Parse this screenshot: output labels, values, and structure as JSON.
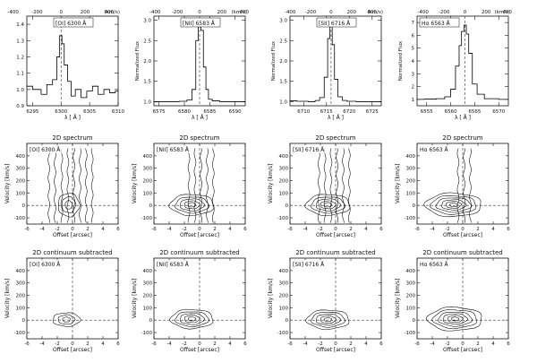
{
  "figure": {
    "row_titles": {
      "row2": "2D spectrum",
      "row3": "2D continuum subtracted"
    }
  },
  "chart_data": [
    {
      "type": "line",
      "panel": "1D [OI] 6300",
      "label": "[OI] 6300 Å",
      "xlabel": "λ [ Å ]",
      "ylabel": "",
      "top_label": "(km/s)",
      "x": [
        6294,
        6296,
        6297,
        6298,
        6299,
        6299.5,
        6300,
        6300.3,
        6300.8,
        6301.5,
        6302,
        6303,
        6304,
        6305,
        6306,
        6307,
        6308,
        6309,
        6310
      ],
      "y": [
        1.02,
        1.0,
        0.97,
        1.03,
        1.06,
        1.2,
        1.33,
        1.28,
        1.15,
        1.05,
        0.96,
        1.0,
        0.95,
        0.99,
        1.02,
        0.97,
        1.0,
        0.98,
        0.99
      ],
      "xlim": [
        6294,
        6310
      ],
      "ylim": [
        0.9,
        1.45
      ],
      "xticks": [
        "6295",
        "6300",
        "6305",
        "6310"
      ],
      "yticks": [
        "0.9",
        "1.0",
        "1.1",
        "1.2",
        "1.3",
        "1.4"
      ],
      "top_ticks": [
        "-400",
        "-200",
        "0",
        "200",
        "400"
      ],
      "center": 6300
    },
    {
      "type": "line",
      "panel": "1D [NII] 6583",
      "label": "[NII] 6583 Å",
      "xlabel": "λ [ Å ]",
      "ylabel": "Normalized Flux",
      "top_label": "(km/s)",
      "x": [
        6574,
        6578,
        6580,
        6581,
        6582,
        6582.5,
        6583,
        6583.5,
        6584,
        6584.5,
        6585,
        6586,
        6588,
        6592
      ],
      "y": [
        1.0,
        1.0,
        1.01,
        1.04,
        1.3,
        2.5,
        2.92,
        2.75,
        1.85,
        1.3,
        1.06,
        1.02,
        1.0,
        1.0
      ],
      "xlim": [
        6574,
        6592
      ],
      "ylim": [
        0.9,
        3.1
      ],
      "xticks": [
        "6575",
        "6580",
        "6585",
        "6590"
      ],
      "yticks": [
        "1.0",
        "1.5",
        "2.0",
        "2.5",
        "3.0"
      ],
      "top_ticks": [
        "-400",
        "-200",
        "0",
        "200",
        "400"
      ],
      "center": 6583
    },
    {
      "type": "line",
      "panel": "1D [SII] 6716",
      "label": "[SII] 6716 Å",
      "xlabel": "λ [ Å ]",
      "ylabel": "Normalized Flux",
      "top_label": "(km/s)",
      "x": [
        6707,
        6710,
        6712,
        6713,
        6714,
        6715,
        6715.5,
        6716,
        6716.5,
        6717,
        6718,
        6719,
        6720,
        6723,
        6727
      ],
      "y": [
        1.02,
        1.01,
        1.0,
        1.03,
        1.1,
        1.6,
        2.55,
        2.95,
        2.4,
        1.55,
        1.12,
        1.03,
        1.01,
        1.0,
        1.0
      ],
      "xlim": [
        6707,
        6727
      ],
      "ylim": [
        0.9,
        3.1
      ],
      "xticks": [
        "6710",
        "6715",
        "6720",
        "6725"
      ],
      "yticks": [
        "1.0",
        "1.5",
        "2.0",
        "2.5",
        "3.0"
      ],
      "top_ticks": [
        "-400",
        "-200",
        "0",
        "200",
        "400"
      ],
      "center": 6716
    },
    {
      "type": "line",
      "panel": "1D Halpha 6563",
      "label": "Hα 6563 Å",
      "xlabel": "λ [ Å ]",
      "ylabel": "Normalized Flux",
      "top_label": "(km/s)",
      "x": [
        6553,
        6556,
        6558,
        6559.5,
        6560.5,
        6561.5,
        6562,
        6562.5,
        6563,
        6563.5,
        6564,
        6565,
        6566,
        6568,
        6572
      ],
      "y": [
        1.0,
        1.02,
        1.05,
        1.2,
        1.8,
        3.6,
        5.2,
        6.3,
        6.8,
        6.1,
        4.6,
        2.2,
        1.4,
        1.05,
        1.0
      ],
      "xlim": [
        6553,
        6572
      ],
      "ylim": [
        0.5,
        7.5
      ],
      "xticks": [
        "6555",
        "6560",
        "6565",
        "6570"
      ],
      "yticks": [
        "1",
        "2",
        "3",
        "4",
        "5",
        "6",
        "7"
      ],
      "top_ticks": [
        "-400",
        "-200",
        "0",
        "200",
        "400"
      ],
      "center": 6563
    },
    {
      "type": "contour",
      "panel": "2D spectrum [OI]",
      "label": "[OI] 6300 Å",
      "title": "2D spectrum",
      "xlabel": "Offset [arcsec]",
      "ylabel": "Velocity [km/s]",
      "xlim": [
        -6,
        6
      ],
      "ylim": [
        -150,
        500
      ],
      "xticks": [
        "-6",
        "-4",
        "-2",
        "0",
        "2",
        "4",
        "6"
      ],
      "yticks": [
        "-100",
        "0",
        "100",
        "200",
        "300",
        "400"
      ],
      "continuum_columns": [
        -3.1,
        -2.3,
        -1.4,
        -0.6,
        0.2,
        1.0,
        1.8,
        2.6
      ],
      "blob_center": [
        -0.5,
        5
      ],
      "blob_radii": [
        [
          0.45,
          35
        ],
        [
          0.9,
          65
        ],
        [
          1.4,
          95
        ]
      ]
    },
    {
      "type": "contour",
      "panel": "2D spectrum [NII]",
      "label": "[NII] 6583 Å",
      "title": "2D spectrum",
      "xlabel": "Offset [arcsec]",
      "ylabel": "Velocity [km/s]",
      "xlim": [
        -6,
        6
      ],
      "ylim": [
        -150,
        500
      ],
      "xticks": [
        "-6",
        "-4",
        "-2",
        "0",
        "2",
        "4",
        "6"
      ],
      "yticks": [
        "-100",
        "0",
        "100",
        "200",
        "300",
        "400"
      ],
      "continuum_columns": [
        -1.4,
        -0.6,
        0.2,
        1.0,
        1.8
      ],
      "blob_center": [
        -1.0,
        5
      ],
      "blob_radii": [
        [
          0.5,
          18
        ],
        [
          1.0,
          32
        ],
        [
          1.6,
          48
        ],
        [
          2.2,
          65
        ],
        [
          2.9,
          85
        ]
      ]
    },
    {
      "type": "contour",
      "panel": "2D spectrum [SII]",
      "label": "[SII] 6716 Å",
      "title": "2D spectrum",
      "xlabel": "Offset [arcsec]",
      "ylabel": "Velocity [km/s]",
      "xlim": [
        -6,
        6
      ],
      "ylim": [
        -150,
        500
      ],
      "xticks": [
        "-6",
        "-4",
        "-2",
        "0",
        "2",
        "4",
        "6"
      ],
      "yticks": [
        "-100",
        "0",
        "100",
        "200",
        "300",
        "400"
      ],
      "continuum_columns": [
        -2.2,
        -1.4,
        -0.6,
        0.2,
        1.0,
        1.8
      ],
      "blob_center": [
        -1.0,
        5
      ],
      "blob_radii": [
        [
          0.5,
          18
        ],
        [
          1.0,
          32
        ],
        [
          1.6,
          48
        ],
        [
          2.2,
          65
        ],
        [
          2.9,
          85
        ]
      ]
    },
    {
      "type": "contour",
      "panel": "2D spectrum Halpha",
      "label": "Hα 6563 Å",
      "title": "2D spectrum",
      "xlabel": "Offset [arcsec]",
      "ylabel": "Velocity [km/s]",
      "xlim": [
        -6,
        6
      ],
      "ylim": [
        -150,
        500
      ],
      "xticks": [
        "-6",
        "-4",
        "-2",
        "0",
        "2",
        "4",
        "6"
      ],
      "yticks": [
        "-100",
        "0",
        "100",
        "200",
        "300",
        "400"
      ],
      "continuum_columns": [
        -0.6,
        0.2,
        1.0
      ],
      "blob_center": [
        -1.2,
        5
      ],
      "blob_radii": [
        [
          0.5,
          15
        ],
        [
          1.0,
          28
        ],
        [
          1.6,
          42
        ],
        [
          2.3,
          58
        ],
        [
          3.0,
          75
        ],
        [
          3.7,
          95
        ]
      ]
    },
    {
      "type": "contour",
      "panel": "2D continuum subtracted [OI]",
      "label": "[OI] 6300 Å",
      "title": "2D continuum subtracted",
      "xlabel": "Offset [arcsec]",
      "ylabel": "Velocity [km/s]",
      "xlim": [
        -6,
        6
      ],
      "ylim": [
        -150,
        500
      ],
      "xticks": [
        "-6",
        "-4",
        "-2",
        "0",
        "2",
        "4",
        "6"
      ],
      "yticks": [
        "-100",
        "0",
        "100",
        "200",
        "300",
        "400"
      ],
      "continuum_columns": [],
      "blob_center": [
        -0.8,
        5
      ],
      "blob_radii": [
        [
          0.5,
          20
        ],
        [
          1.1,
          38
        ],
        [
          1.8,
          55
        ]
      ]
    },
    {
      "type": "contour",
      "panel": "2D continuum subtracted [NII]",
      "label": "[NII] 6583 Å",
      "title": "2D continuum subtracted",
      "xlabel": "Offset [arcsec]",
      "ylabel": "Velocity [km/s]",
      "xlim": [
        -6,
        6
      ],
      "ylim": [
        -150,
        500
      ],
      "xticks": [
        "-6",
        "-4",
        "-2",
        "0",
        "2",
        "4",
        "6"
      ],
      "yticks": [
        "-100",
        "0",
        "100",
        "200",
        "300",
        "400"
      ],
      "continuum_columns": [],
      "blob_center": [
        -1.0,
        10
      ],
      "blob_radii": [
        [
          0.5,
          16
        ],
        [
          1.0,
          30
        ],
        [
          1.6,
          45
        ],
        [
          2.2,
          60
        ],
        [
          2.8,
          78
        ]
      ]
    },
    {
      "type": "contour",
      "panel": "2D continuum subtracted [SII]",
      "label": "[SII] 6716 Å",
      "title": "2D continuum subtracted",
      "xlabel": "Offset [arcsec]",
      "ylabel": "Velocity [km/s]",
      "xlim": [
        -6,
        6
      ],
      "ylim": [
        -150,
        500
      ],
      "xticks": [
        "-6",
        "-4",
        "-2",
        "0",
        "2",
        "4",
        "6"
      ],
      "yticks": [
        "-100",
        "0",
        "100",
        "200",
        "300",
        "400"
      ],
      "continuum_columns": [],
      "blob_center": [
        -1.0,
        5
      ],
      "blob_radii": [
        [
          0.5,
          16
        ],
        [
          1.0,
          30
        ],
        [
          1.6,
          45
        ],
        [
          2.2,
          60
        ],
        [
          2.8,
          78
        ]
      ]
    },
    {
      "type": "contour",
      "panel": "2D continuum subtracted Halpha",
      "label": "Hα 6563 Å",
      "title": "2D continuum subtracted",
      "xlabel": "Offset [arcsec]",
      "ylabel": "Velocity [km/s]",
      "xlim": [
        -6,
        6
      ],
      "ylim": [
        -150,
        500
      ],
      "xticks": [
        "-6",
        "-4",
        "-2",
        "0",
        "2",
        "4",
        "6"
      ],
      "yticks": [
        "-100",
        "0",
        "100",
        "200",
        "300",
        "400"
      ],
      "continuum_columns": [],
      "blob_center": [
        -1.0,
        10
      ],
      "blob_radii": [
        [
          0.5,
          15
        ],
        [
          1.0,
          28
        ],
        [
          1.6,
          42
        ],
        [
          2.2,
          58
        ],
        [
          2.9,
          75
        ],
        [
          3.6,
          95
        ]
      ]
    }
  ]
}
